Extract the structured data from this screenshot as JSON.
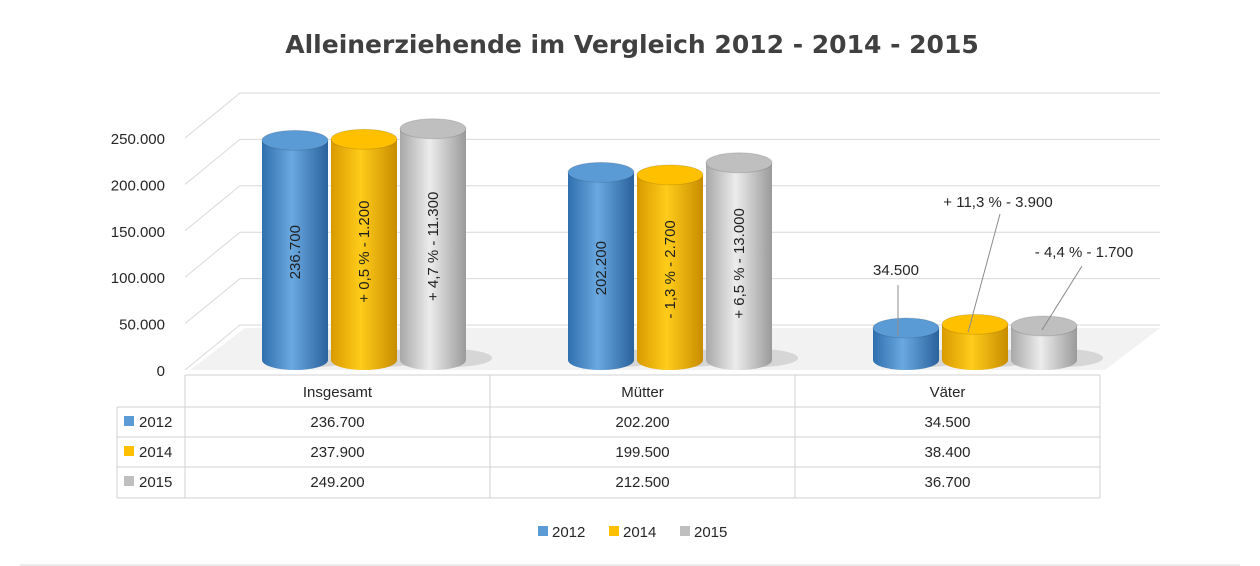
{
  "chart_data": {
    "type": "bar",
    "style": "3d-cylinder",
    "title": "Alleinerziehende im Vergleich 2012 - 2014 - 2015",
    "categories": [
      "Insgesamt",
      "Mütter",
      "Väter"
    ],
    "series": [
      {
        "name": "2012",
        "color": "#5b9bd5",
        "values": [
          236700,
          202200,
          34500
        ],
        "value_labels": [
          "236.700",
          "202.200",
          "34.500"
        ]
      },
      {
        "name": "2014",
        "color": "#ffc000",
        "values": [
          237900,
          199500,
          38400
        ],
        "value_labels": [
          "237.900",
          "199.500",
          "38.400"
        ]
      },
      {
        "name": "2015",
        "color": "#bfbfbf",
        "values": [
          249200,
          212500,
          36700
        ],
        "value_labels": [
          "249.200",
          "212.500",
          "36.700"
        ]
      }
    ],
    "bar_labels": [
      [
        "236.700",
        "+ 0,5 % - 1.200",
        "+ 4,7 % - 11.300"
      ],
      [
        "202.200",
        "- 1,3 % - 2.700",
        "+ 6,5 % - 13.000"
      ],
      [
        "34.500",
        "+ 11,3 % - 3.900",
        "- 4,4 % - 1.700"
      ]
    ],
    "yticks": [
      "0",
      "50.000",
      "100.000",
      "150.000",
      "200.000",
      "250.000"
    ],
    "ylim": [
      0,
      250000
    ],
    "grid": true,
    "legend": "bottom",
    "data_table": true
  }
}
